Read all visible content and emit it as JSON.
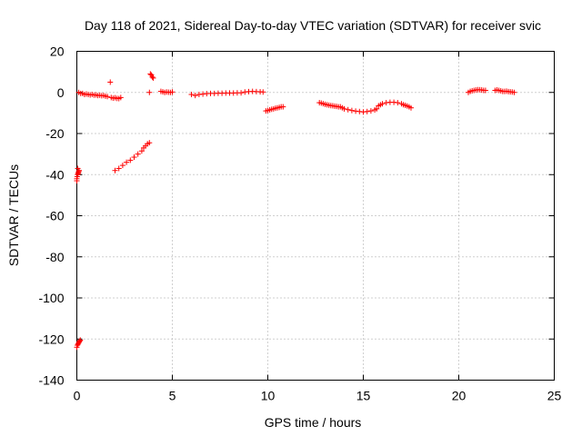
{
  "chart_data": {
    "type": "scatter",
    "title": "Day 118 of 2021, Sidereal Day-to-day VTEC variation (SDTVAR) for receiver svic",
    "xlabel": "GPS time / hours",
    "ylabel": "SDTVAR / TECUs",
    "xlim": [
      0,
      25
    ],
    "ylim": [
      -140,
      20
    ],
    "xticks": [
      "0",
      "5",
      "10",
      "15",
      "20",
      "25"
    ],
    "yticks": [
      "20",
      "0",
      "-20",
      "-40",
      "-60",
      "-80",
      "-100",
      "-120",
      "-140"
    ],
    "xtick_values": [
      0,
      5,
      10,
      15,
      20,
      25
    ],
    "ytick_values": [
      20,
      0,
      -20,
      -40,
      -60,
      -80,
      -100,
      -120,
      -140
    ],
    "grid": true,
    "marker": "+",
    "color": "#ff0000",
    "series": [
      {
        "points": [
          [
            0.0,
            -42
          ],
          [
            0.02,
            -41
          ],
          [
            0.04,
            -40
          ],
          [
            0.06,
            -39.5
          ],
          [
            0.08,
            -39
          ],
          [
            0.1,
            -38.5
          ],
          [
            0.12,
            -38
          ],
          [
            0.0,
            -43
          ],
          [
            0.05,
            -37
          ],
          [
            0.0,
            -124
          ],
          [
            0.03,
            -123
          ],
          [
            0.06,
            -122.5
          ],
          [
            0.09,
            -122
          ],
          [
            0.12,
            -121.5
          ],
          [
            0.15,
            -121
          ],
          [
            0.18,
            -120.5
          ],
          [
            0.1,
            0
          ],
          [
            0.2,
            -0.5
          ],
          [
            0.3,
            -0.5
          ],
          [
            0.4,
            -1
          ],
          [
            0.5,
            -0.8
          ],
          [
            0.6,
            -1
          ],
          [
            0.7,
            -1.2
          ],
          [
            0.8,
            -1
          ],
          [
            0.9,
            -1.3
          ],
          [
            1.0,
            -1.2
          ],
          [
            1.1,
            -1.5
          ],
          [
            1.2,
            -1.4
          ],
          [
            1.3,
            -1.6
          ],
          [
            1.4,
            -1.5
          ],
          [
            1.5,
            -1.8
          ],
          [
            1.6,
            -2
          ],
          [
            1.75,
            5
          ],
          [
            1.8,
            -2.5
          ],
          [
            1.9,
            -2.8
          ],
          [
            2.0,
            -2.6
          ],
          [
            2.1,
            -2.9
          ],
          [
            2.2,
            -3
          ],
          [
            2.3,
            -2.5
          ],
          [
            2.0,
            -38
          ],
          [
            2.2,
            -37
          ],
          [
            2.4,
            -35.5
          ],
          [
            2.6,
            -34
          ],
          [
            2.8,
            -33
          ],
          [
            3.0,
            -31.5
          ],
          [
            3.2,
            -30
          ],
          [
            3.4,
            -28.5
          ],
          [
            3.5,
            -27
          ],
          [
            3.6,
            -26
          ],
          [
            3.7,
            -25
          ],
          [
            3.8,
            -24.5
          ],
          [
            3.8,
            0
          ],
          [
            3.85,
            9
          ],
          [
            3.9,
            8.5
          ],
          [
            3.95,
            7.5
          ],
          [
            4.0,
            7
          ],
          [
            4.4,
            0.5
          ],
          [
            4.5,
            0.3
          ],
          [
            4.6,
            0
          ],
          [
            4.7,
            0.2
          ],
          [
            4.8,
            0.1
          ],
          [
            4.9,
            0
          ],
          [
            5.0,
            0.2
          ],
          [
            6.0,
            -1
          ],
          [
            6.2,
            -1.5
          ],
          [
            6.4,
            -1
          ],
          [
            6.6,
            -0.8
          ],
          [
            6.8,
            -0.6
          ],
          [
            7.0,
            -0.5
          ],
          [
            7.2,
            -0.5
          ],
          [
            7.4,
            -0.4
          ],
          [
            7.6,
            -0.4
          ],
          [
            7.8,
            -0.3
          ],
          [
            8.0,
            -0.3
          ],
          [
            8.2,
            -0.3
          ],
          [
            8.4,
            -0.2
          ],
          [
            8.6,
            -0.2
          ],
          [
            8.8,
            0.2
          ],
          [
            9.0,
            0.4
          ],
          [
            9.2,
            0.5
          ],
          [
            9.4,
            0.4
          ],
          [
            9.6,
            0.3
          ],
          [
            9.75,
            0.2
          ],
          [
            9.9,
            -9
          ],
          [
            10.0,
            -8.8
          ],
          [
            10.1,
            -8.5
          ],
          [
            10.2,
            -8.2
          ],
          [
            10.3,
            -8
          ],
          [
            10.4,
            -7.7
          ],
          [
            10.5,
            -7.5
          ],
          [
            10.6,
            -7.3
          ],
          [
            10.7,
            -7
          ],
          [
            10.8,
            -7
          ],
          [
            12.7,
            -5
          ],
          [
            12.8,
            -5.2
          ],
          [
            12.9,
            -5.5
          ],
          [
            13.0,
            -5.8
          ],
          [
            13.1,
            -6
          ],
          [
            13.2,
            -6.2
          ],
          [
            13.3,
            -6.4
          ],
          [
            13.4,
            -6.5
          ],
          [
            13.5,
            -6.7
          ],
          [
            13.6,
            -6.8
          ],
          [
            13.7,
            -7
          ],
          [
            13.8,
            -7
          ],
          [
            13.9,
            -7.5
          ],
          [
            14.0,
            -8
          ],
          [
            14.2,
            -8.4
          ],
          [
            14.4,
            -8.8
          ],
          [
            14.6,
            -9.1
          ],
          [
            14.8,
            -9.3
          ],
          [
            15.0,
            -9.5
          ],
          [
            15.2,
            -9.3
          ],
          [
            15.4,
            -9
          ],
          [
            15.6,
            -8.5
          ],
          [
            15.7,
            -8
          ],
          [
            15.8,
            -6.5
          ],
          [
            15.9,
            -6
          ],
          [
            16.0,
            -5.5
          ],
          [
            16.2,
            -5
          ],
          [
            16.4,
            -4.8
          ],
          [
            16.6,
            -4.8
          ],
          [
            16.8,
            -5
          ],
          [
            17.0,
            -5.5
          ],
          [
            17.1,
            -6
          ],
          [
            17.2,
            -6.3
          ],
          [
            17.3,
            -6.6
          ],
          [
            17.4,
            -7
          ],
          [
            17.5,
            -7.5
          ],
          [
            20.5,
            0
          ],
          [
            20.6,
            0.5
          ],
          [
            20.7,
            0.8
          ],
          [
            20.8,
            1
          ],
          [
            20.9,
            1.2
          ],
          [
            21.0,
            1.3
          ],
          [
            21.1,
            1.3
          ],
          [
            21.2,
            1.2
          ],
          [
            21.3,
            1
          ],
          [
            21.4,
            1
          ],
          [
            21.9,
            1
          ],
          [
            22.0,
            1.2
          ],
          [
            22.1,
            1
          ],
          [
            22.2,
            0.8
          ],
          [
            22.3,
            0.5
          ],
          [
            22.4,
            0.5
          ],
          [
            22.5,
            0.6
          ],
          [
            22.6,
            0.4
          ],
          [
            22.7,
            0.3
          ],
          [
            22.8,
            0.2
          ],
          [
            22.9,
            0
          ]
        ]
      }
    ]
  }
}
